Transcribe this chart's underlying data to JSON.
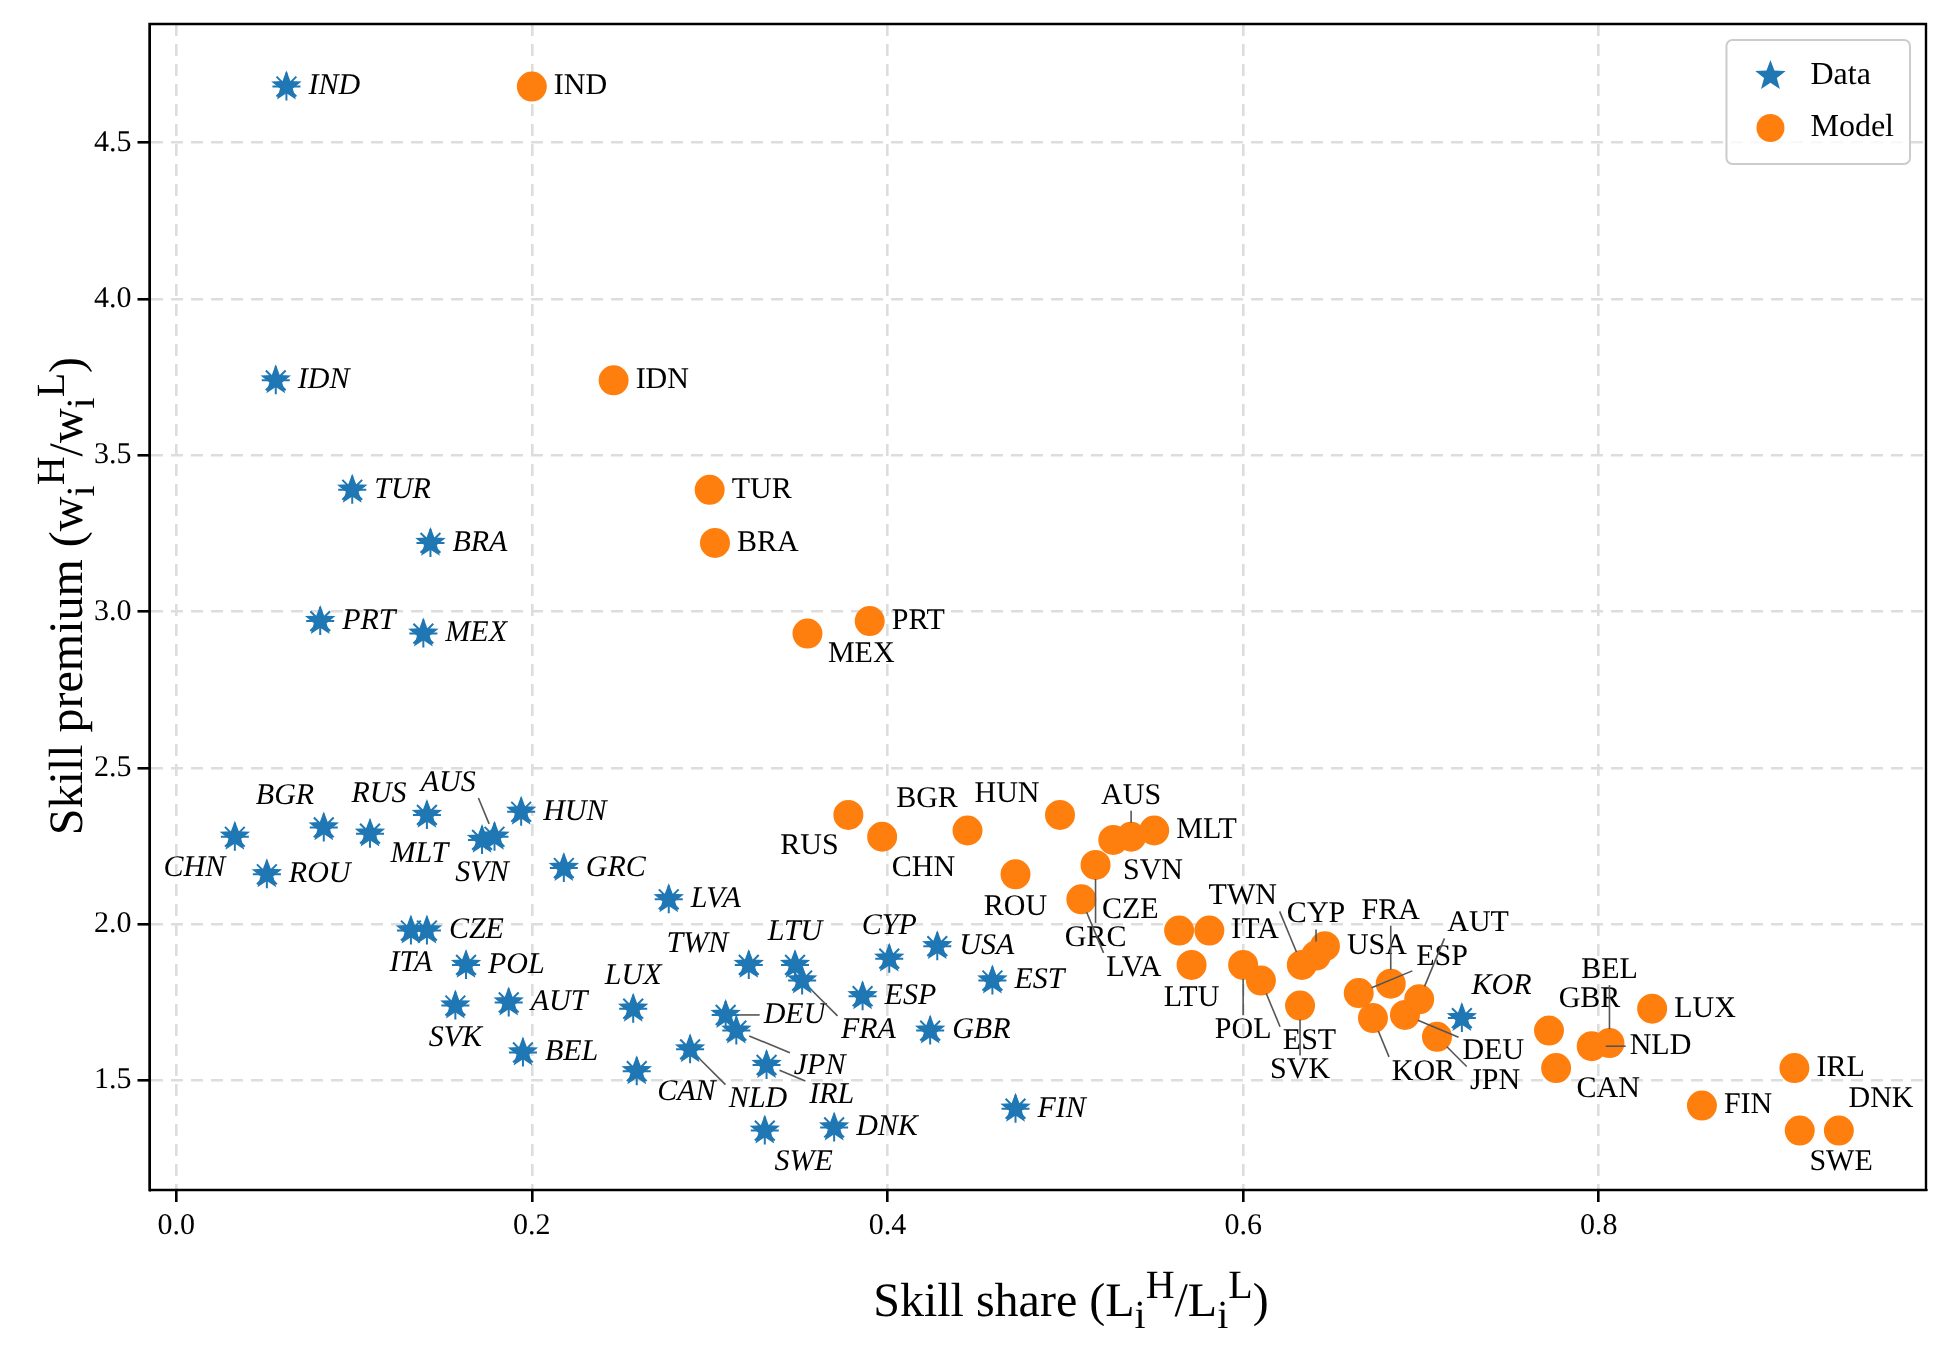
{
  "chart_data": {
    "type": "scatter",
    "xlabel": "Skill share (L$_{i}$$^{H}$/L$_{i}$$^{L}$)",
    "ylabel": "Skill premium (w$_{i}$$^{H}$/w$_{i}$$^{L}$)",
    "xlim": [
      -0.015,
      0.984
    ],
    "ylim": [
      1.15,
      4.88
    ],
    "xticks": [
      {
        "value": 0,
        "label": "0.0"
      },
      0.2,
      0.4,
      0.6,
      0.8
    ],
    "yticks": [
      1.5,
      {
        "value": 2,
        "label": "2.0"
      },
      2.5,
      {
        "value": 3,
        "label": "3.0"
      },
      3.5,
      {
        "value": 4,
        "label": "4.0"
      },
      4.5
    ],
    "grid": true,
    "legend": "top right",
    "series": [
      {
        "name": "Data",
        "color": "#1f77b4",
        "marker": "star",
        "x": [
          0.062,
          0.056,
          0.099,
          0.143,
          0.081,
          0.139,
          0.033,
          0.083,
          0.051,
          0.109,
          0.141,
          0.194,
          0.172,
          0.179,
          0.218,
          0.277,
          0.132,
          0.141,
          0.163,
          0.157,
          0.187,
          0.195,
          0.257,
          0.259,
          0.289,
          0.309,
          0.315,
          0.322,
          0.348,
          0.352,
          0.332,
          0.331,
          0.37,
          0.386,
          0.401,
          0.428,
          0.424,
          0.459,
          0.472,
          0.723
        ],
        "values": [
          4.68,
          3.74,
          3.39,
          3.22,
          2.97,
          2.93,
          2.28,
          2.31,
          2.16,
          2.29,
          2.35,
          2.36,
          2.27,
          2.28,
          2.18,
          2.08,
          1.98,
          1.98,
          1.87,
          1.74,
          1.75,
          1.59,
          1.73,
          1.53,
          1.6,
          1.71,
          1.66,
          1.87,
          1.87,
          1.82,
          1.55,
          1.34,
          1.35,
          1.77,
          1.89,
          1.93,
          1.66,
          1.82,
          1.41,
          1.7
        ]
      },
      {
        "name": "Model",
        "color": "#ff7f0e",
        "marker": "circle",
        "x": [
          0.2,
          0.246,
          0.3,
          0.303,
          0.355,
          0.39,
          0.378,
          0.397,
          0.445,
          0.497,
          0.472,
          0.527,
          0.55,
          0.537,
          0.517,
          0.509,
          0.564,
          0.581,
          0.571,
          0.6,
          0.61,
          0.646,
          0.641,
          0.633,
          0.632,
          0.665,
          0.673,
          0.683,
          0.691,
          0.699,
          0.709,
          0.772,
          0.776,
          0.796,
          0.806,
          0.83,
          0.91,
          0.858,
          0.913,
          0.935
        ],
        "values": [
          4.68,
          3.74,
          3.39,
          3.22,
          2.93,
          2.97,
          2.35,
          2.28,
          2.3,
          2.35,
          2.16,
          2.27,
          2.3,
          2.28,
          2.19,
          2.08,
          1.98,
          1.98,
          1.87,
          1.87,
          1.82,
          1.93,
          1.9,
          1.87,
          1.74,
          1.78,
          1.7,
          1.81,
          1.71,
          1.76,
          1.64,
          1.66,
          1.54,
          1.61,
          1.62,
          1.73,
          1.54,
          1.42,
          1.34,
          1.34
        ]
      }
    ],
    "annotations": [
      {
        "text": "IND",
        "x": 0.062,
        "y": 4.68
      },
      {
        "text": "IDN",
        "x": 0.056,
        "y": 3.74
      },
      {
        "text": "TUR",
        "x": 0.099,
        "y": 3.39
      },
      {
        "text": "BRA",
        "x": 0.143,
        "y": 3.22
      },
      {
        "text": "PRT",
        "x": 0.081,
        "y": 2.97
      },
      {
        "text": "MEX",
        "x": 0.139,
        "y": 2.93
      },
      {
        "text": "CHN",
        "x": 0.033,
        "y": 2.28
      },
      {
        "text": "BGR",
        "x": 0.083,
        "y": 2.31
      },
      {
        "text": "ROU",
        "x": 0.051,
        "y": 2.16
      },
      {
        "text": "MLT",
        "x": 0.109,
        "y": 2.29
      },
      {
        "text": "RUS",
        "x": 0.141,
        "y": 2.35
      },
      {
        "text": "HUN",
        "x": 0.194,
        "y": 2.36
      },
      {
        "text": "SVN",
        "x": 0.172,
        "y": 2.27
      },
      {
        "text": "AUS",
        "x": 0.179,
        "y": 2.28
      },
      {
        "text": "GRC",
        "x": 0.218,
        "y": 2.18
      },
      {
        "text": "LVA",
        "x": 0.277,
        "y": 2.08
      },
      {
        "text": "ITA",
        "x": 0.132,
        "y": 1.98
      },
      {
        "text": "CZE",
        "x": 0.141,
        "y": 1.98
      },
      {
        "text": "POL",
        "x": 0.163,
        "y": 1.87
      },
      {
        "text": "SVK",
        "x": 0.157,
        "y": 1.74
      },
      {
        "text": "AUT",
        "x": 0.187,
        "y": 1.75
      },
      {
        "text": "BEL",
        "x": 0.195,
        "y": 1.59
      },
      {
        "text": "LUX",
        "x": 0.257,
        "y": 1.73
      },
      {
        "text": "CAN",
        "x": 0.259,
        "y": 1.53
      },
      {
        "text": "NLD",
        "x": 0.289,
        "y": 1.6
      },
      {
        "text": "DEU",
        "x": 0.309,
        "y": 1.71
      },
      {
        "text": "JPN",
        "x": 0.315,
        "y": 1.66
      },
      {
        "text": "TWN",
        "x": 0.322,
        "y": 1.87
      },
      {
        "text": "LTU",
        "x": 0.348,
        "y": 1.87
      },
      {
        "text": "FRA",
        "x": 0.352,
        "y": 1.82
      },
      {
        "text": "IRL",
        "x": 0.332,
        "y": 1.55
      },
      {
        "text": "SWE",
        "x": 0.331,
        "y": 1.34
      },
      {
        "text": "DNK",
        "x": 0.37,
        "y": 1.35
      },
      {
        "text": "ESP",
        "x": 0.386,
        "y": 1.77
      },
      {
        "text": "CYP",
        "x": 0.401,
        "y": 1.89
      },
      {
        "text": "USA",
        "x": 0.428,
        "y": 1.93
      },
      {
        "text": "GBR",
        "x": 0.424,
        "y": 1.66
      },
      {
        "text": "EST",
        "x": 0.459,
        "y": 1.82
      },
      {
        "text": "FIN",
        "x": 0.472,
        "y": 1.41
      },
      {
        "text": "KOR",
        "x": 0.723,
        "y": 1.7
      },
      {
        "text": "IND",
        "x": 0.2,
        "y": 4.68
      },
      {
        "text": "IDN",
        "x": 0.246,
        "y": 3.74
      },
      {
        "text": "TUR",
        "x": 0.3,
        "y": 3.39
      },
      {
        "text": "BRA",
        "x": 0.303,
        "y": 3.22
      },
      {
        "text": "MEX",
        "x": 0.355,
        "y": 2.93
      },
      {
        "text": "PRT",
        "x": 0.39,
        "y": 2.97
      },
      {
        "text": "RUS",
        "x": 0.378,
        "y": 2.35
      },
      {
        "text": "CHN",
        "x": 0.397,
        "y": 2.28
      },
      {
        "text": "BGR",
        "x": 0.445,
        "y": 2.3
      },
      {
        "text": "HUN",
        "x": 0.497,
        "y": 2.35
      },
      {
        "text": "ROU",
        "x": 0.472,
        "y": 2.16
      },
      {
        "text": "SVN",
        "x": 0.527,
        "y": 2.27
      },
      {
        "text": "MLT",
        "x": 0.55,
        "y": 2.3
      },
      {
        "text": "AUS",
        "x": 0.537,
        "y": 2.28
      },
      {
        "text": "GRC",
        "x": 0.517,
        "y": 2.19
      },
      {
        "text": "LVA",
        "x": 0.509,
        "y": 2.08
      },
      {
        "text": "CZE",
        "x": 0.564,
        "y": 1.98
      },
      {
        "text": "ITA",
        "x": 0.581,
        "y": 1.98
      },
      {
        "text": "LTU",
        "x": 0.571,
        "y": 1.87
      },
      {
        "text": "POL",
        "x": 0.6,
        "y": 1.87
      },
      {
        "text": "EST",
        "x": 0.61,
        "y": 1.82
      },
      {
        "text": "USA",
        "x": 0.646,
        "y": 1.93
      },
      {
        "text": "CYP",
        "x": 0.641,
        "y": 1.9
      },
      {
        "text": "TWN",
        "x": 0.633,
        "y": 1.87
      },
      {
        "text": "SVK",
        "x": 0.632,
        "y": 1.74
      },
      {
        "text": "ESP",
        "x": 0.665,
        "y": 1.78
      },
      {
        "text": "KOR",
        "x": 0.673,
        "y": 1.7
      },
      {
        "text": "FRA",
        "x": 0.683,
        "y": 1.81
      },
      {
        "text": "DEU",
        "x": 0.691,
        "y": 1.71
      },
      {
        "text": "AUT",
        "x": 0.699,
        "y": 1.76
      },
      {
        "text": "JPN",
        "x": 0.709,
        "y": 1.64
      },
      {
        "text": "GBR",
        "x": 0.772,
        "y": 1.66
      },
      {
        "text": "CAN",
        "x": 0.776,
        "y": 1.54
      },
      {
        "text": "NLD",
        "x": 0.796,
        "y": 1.61
      },
      {
        "text": "BEL",
        "x": 0.806,
        "y": 1.62
      },
      {
        "text": "LUX",
        "x": 0.83,
        "y": 1.73
      },
      {
        "text": "IRL",
        "x": 0.91,
        "y": 1.54
      },
      {
        "text": "FIN",
        "x": 0.858,
        "y": 1.42
      },
      {
        "text": "SWE",
        "x": 0.913,
        "y": 1.34
      },
      {
        "text": "DNK",
        "x": 0.935,
        "y": 1.34
      }
    ]
  }
}
